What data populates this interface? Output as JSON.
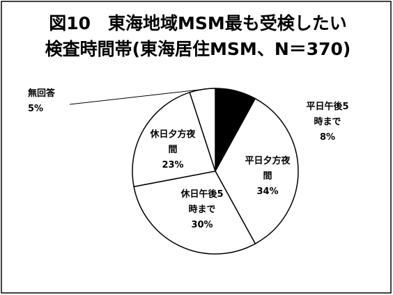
{
  "chart_data": {
    "type": "pie",
    "title_lines": [
      "図10　東海地域MSM最も受検したい",
      "検査時間帯(東海居住MSM、N＝370)"
    ],
    "categories": [
      "平日午後5時まで",
      "平日夕方夜間",
      "休日午後5時まで",
      "休日夕方夜間",
      "無回答"
    ],
    "values": [
      8,
      34,
      30,
      23,
      5
    ],
    "value_labels": [
      "8%",
      "34%",
      "30%",
      "23%",
      "5%"
    ],
    "colors": [
      "#000000",
      "#ffffff",
      "#ffffff",
      "#ffffff",
      "#ffffff"
    ]
  }
}
